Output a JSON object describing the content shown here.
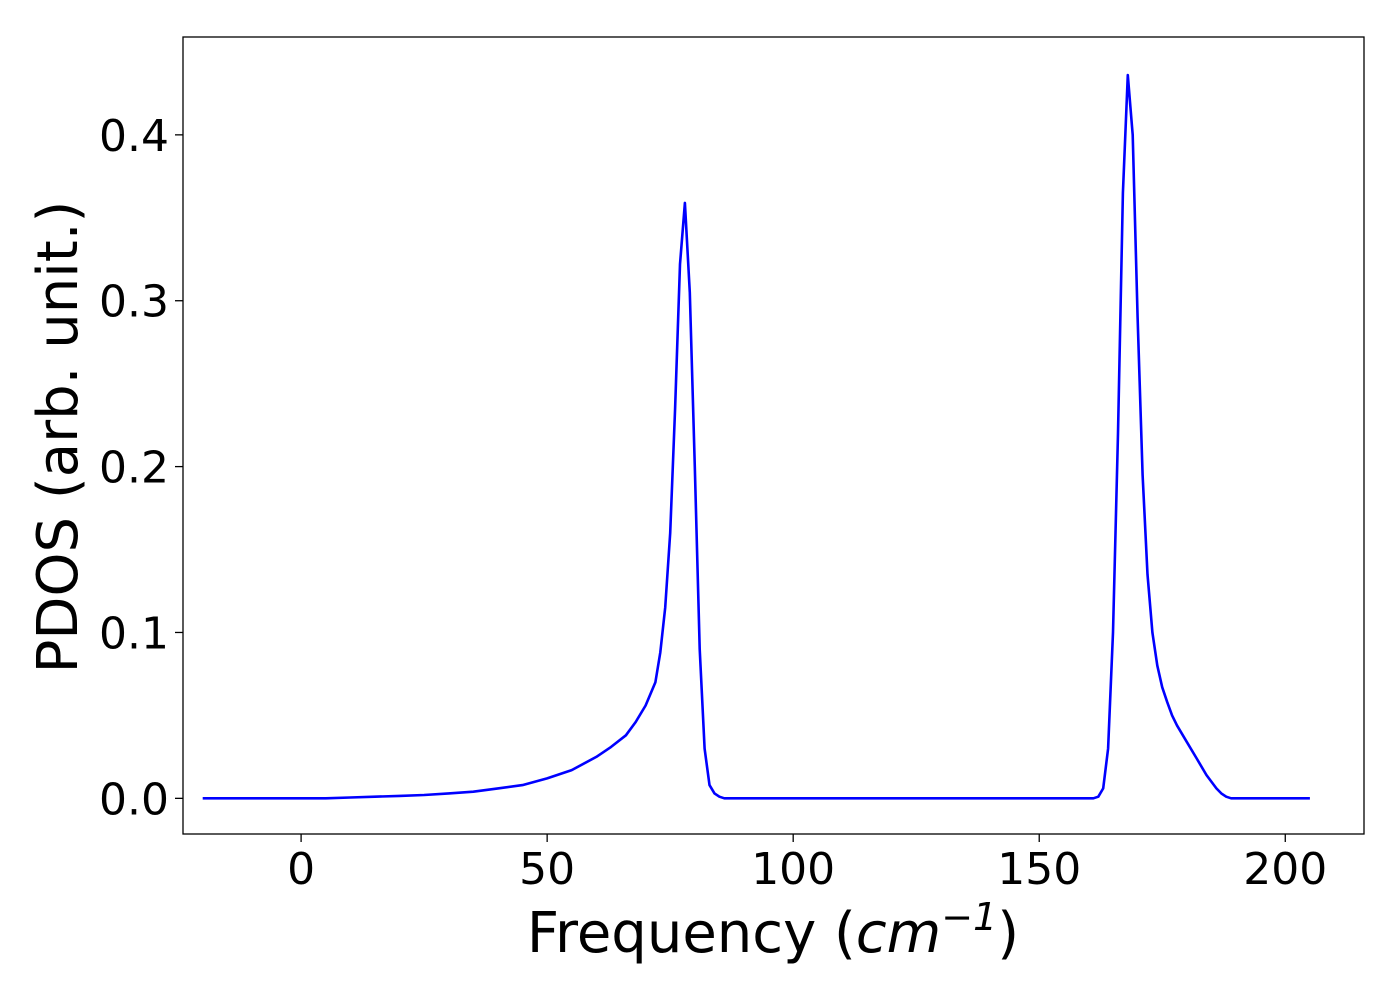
{
  "chart_data": {
    "type": "line",
    "title": "",
    "xlabel": {
      "prefix": "Frequency (",
      "math_base": "cm",
      "math_sup": "−1",
      "suffix": ")"
    },
    "ylabel": "PDOS (arb. unit.)",
    "xlim": [
      -24,
      216
    ],
    "ylim": [
      -0.0215,
      0.459
    ],
    "xticks": [
      0,
      50,
      100,
      150,
      200
    ],
    "xtick_labels": [
      "0",
      "50",
      "100",
      "150",
      "200"
    ],
    "yticks": [
      0.0,
      0.1,
      0.2,
      0.3,
      0.4
    ],
    "ytick_labels": [
      "0.0",
      "0.1",
      "0.2",
      "0.3",
      "0.4"
    ],
    "grid": false,
    "legend": "none",
    "series": [
      {
        "color": "#0000ff",
        "x": [
          -20,
          0,
          5,
          10,
          15,
          20,
          25,
          30,
          35,
          40,
          45,
          50,
          55,
          60,
          63,
          66,
          68,
          70,
          72,
          73,
          74,
          75,
          76,
          77,
          78,
          79,
          80,
          81,
          82,
          83,
          84,
          85,
          86,
          88,
          100,
          150,
          161,
          162,
          163,
          164,
          165,
          166,
          167,
          168,
          169,
          170,
          171,
          172,
          173,
          174,
          175,
          176,
          177,
          178,
          180,
          182,
          184,
          186,
          187,
          188,
          189,
          190,
          192,
          205
        ],
        "y": [
          0.0,
          0.0,
          0.0,
          0.0005,
          0.001,
          0.0015,
          0.002,
          0.003,
          0.004,
          0.006,
          0.008,
          0.012,
          0.017,
          0.025,
          0.031,
          0.038,
          0.046,
          0.056,
          0.07,
          0.088,
          0.115,
          0.16,
          0.235,
          0.322,
          0.359,
          0.305,
          0.2,
          0.09,
          0.03,
          0.008,
          0.003,
          0.001,
          0.0,
          0.0,
          0.0,
          0.0,
          0.0,
          0.001,
          0.006,
          0.03,
          0.1,
          0.22,
          0.365,
          0.436,
          0.4,
          0.29,
          0.195,
          0.135,
          0.1,
          0.08,
          0.067,
          0.058,
          0.05,
          0.044,
          0.034,
          0.024,
          0.014,
          0.006,
          0.003,
          0.001,
          0.0,
          0.0,
          0.0,
          0.0
        ]
      }
    ]
  }
}
